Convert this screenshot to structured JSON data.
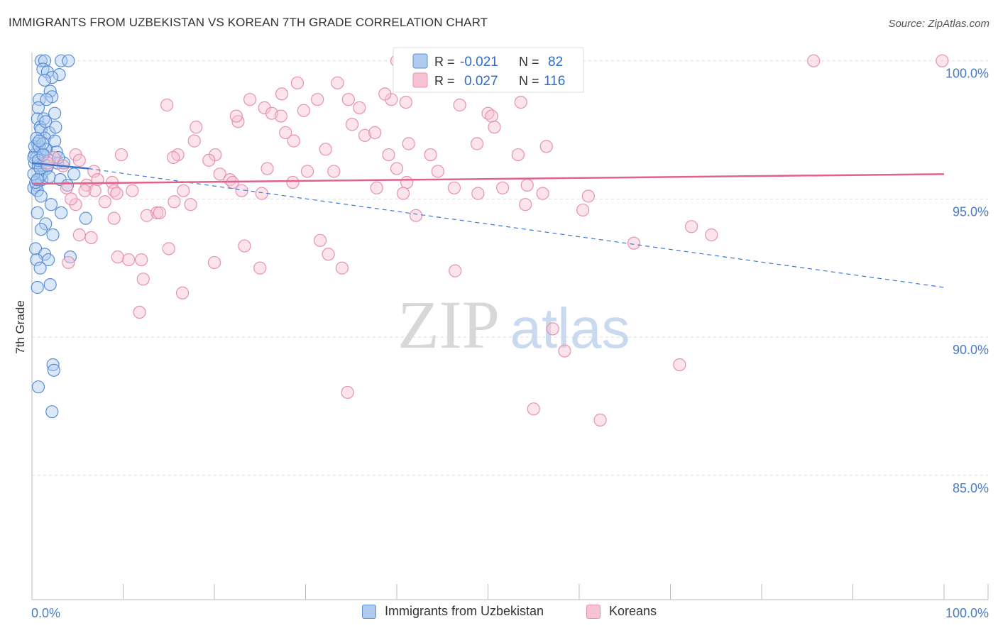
{
  "header": {
    "title": "IMMIGRANTS FROM UZBEKISTAN VS KOREAN 7TH GRADE CORRELATION CHART",
    "source": "Source: ZipAtlas.com"
  },
  "watermark": {
    "zip": "ZIP",
    "atlas": "atlas"
  },
  "legend_box": {
    "rows": [
      {
        "r_label": "R =",
        "r_value": "-0.021",
        "n_label": "N =",
        "n_value": "82",
        "color": "#7aaae8"
      },
      {
        "r_label": "R =",
        "r_value": "0.027",
        "n_label": "N =",
        "n_value": "116",
        "color": "#f29bb8"
      }
    ]
  },
  "colors": {
    "uzbek_fill": "#aecbef",
    "uzbek_stroke": "#5b8fd6",
    "uzbek_line": "#3a78d0",
    "korean_fill": "#f7c3d4",
    "korean_stroke": "#e890b0",
    "korean_line": "#e0628c",
    "grid": "#dddddd",
    "tick_label": "#4a7bc8",
    "value_text": "#2f6bc9"
  },
  "chart_data": {
    "type": "scatter",
    "title": "IMMIGRANTS FROM UZBEKISTAN VS KOREAN 7TH GRADE CORRELATION CHART",
    "xlabel": "",
    "ylabel": "7th Grade",
    "xlim": [
      0,
      100
    ],
    "ylim": [
      80.5,
      100.3
    ],
    "x_tick_labels": [
      "0.0%",
      "100.0%"
    ],
    "y_ticks": [
      85,
      90,
      95,
      100
    ],
    "y_tick_labels": [
      "85.0%",
      "90.0%",
      "95.0%",
      "100.0%"
    ],
    "grid": true,
    "legend_position": "bottom",
    "series": [
      {
        "name": "Immigrants from Uzbekistan",
        "r": -0.021,
        "n": 82,
        "trend": {
          "x": [
            0,
            6.2
          ],
          "y": [
            96.3,
            96.1
          ],
          "dashed_x": [
            6.2,
            100
          ],
          "dashed_y": [
            96.1,
            91.8
          ]
        },
        "points": [
          [
            1.0,
            100
          ],
          [
            1.4,
            100
          ],
          [
            3.2,
            100
          ],
          [
            4.0,
            100
          ],
          [
            1.2,
            99.7
          ],
          [
            1.7,
            99.6
          ],
          [
            3.0,
            99.5
          ],
          [
            2.2,
            99.4
          ],
          [
            1.4,
            99.3
          ],
          [
            2.0,
            98.9
          ],
          [
            2.2,
            98.7
          ],
          [
            0.8,
            98.6
          ],
          [
            1.6,
            98.6
          ],
          [
            0.7,
            98.3
          ],
          [
            2.5,
            98.1
          ],
          [
            0.6,
            97.9
          ],
          [
            1.3,
            97.9
          ],
          [
            0.9,
            97.6
          ],
          [
            1.0,
            97.5
          ],
          [
            1.9,
            97.4
          ],
          [
            1.4,
            97.2
          ],
          [
            2.5,
            97.1
          ],
          [
            0.6,
            97.0
          ],
          [
            1.6,
            96.8
          ],
          [
            0.9,
            96.7
          ],
          [
            2.7,
            96.7
          ],
          [
            0.3,
            96.6
          ],
          [
            1.3,
            96.6
          ],
          [
            0.5,
            96.5
          ],
          [
            0.3,
            96.3
          ],
          [
            2.8,
            96.3
          ],
          [
            3.5,
            96.3
          ],
          [
            0.7,
            96.2
          ],
          [
            1.6,
            96.1
          ],
          [
            4.6,
            95.9
          ],
          [
            0.9,
            95.8
          ],
          [
            1.1,
            95.7
          ],
          [
            3.1,
            95.7
          ],
          [
            0.5,
            95.5
          ],
          [
            3.9,
            95.5
          ],
          [
            0.2,
            95.4
          ],
          [
            0.6,
            95.3
          ],
          [
            1.0,
            95.1
          ],
          [
            2.1,
            94.8
          ],
          [
            0.6,
            94.5
          ],
          [
            3.2,
            94.5
          ],
          [
            5.9,
            94.3
          ],
          [
            1.5,
            94.1
          ],
          [
            1.0,
            93.9
          ],
          [
            2.3,
            93.7
          ],
          [
            0.4,
            93.2
          ],
          [
            1.4,
            93.0
          ],
          [
            4.2,
            92.9
          ],
          [
            0.5,
            92.8
          ],
          [
            1.8,
            92.8
          ],
          [
            0.9,
            92.5
          ],
          [
            2.0,
            91.9
          ],
          [
            0.6,
            91.8
          ],
          [
            2.3,
            89.0
          ],
          [
            2.4,
            88.8
          ],
          [
            0.7,
            88.2
          ],
          [
            2.2,
            87.3
          ],
          [
            0.3,
            96.9
          ],
          [
            0.8,
            96.9
          ],
          [
            1.5,
            97.8
          ],
          [
            2.6,
            97.6
          ],
          [
            0.5,
            97.2
          ],
          [
            0.2,
            96.5
          ],
          [
            1.9,
            96.4
          ],
          [
            1.1,
            95.9
          ],
          [
            0.4,
            95.6
          ],
          [
            0.2,
            95.9
          ],
          [
            0.9,
            96.1
          ],
          [
            1.5,
            96.8
          ],
          [
            1.2,
            97.0
          ],
          [
            0.7,
            96.4
          ],
          [
            1.7,
            96.2
          ],
          [
            2.9,
            96.5
          ],
          [
            0.6,
            95.7
          ],
          [
            1.2,
            96.6
          ],
          [
            0.8,
            97.1
          ],
          [
            1.9,
            95.8
          ]
        ]
      },
      {
        "name": "Koreans",
        "r": 0.027,
        "n": 116,
        "trend": {
          "x": [
            0,
            100
          ],
          "y": [
            95.55,
            95.9
          ]
        },
        "points": [
          [
            40.0,
            100
          ],
          [
            85.7,
            100
          ],
          [
            99.8,
            100
          ],
          [
            29.1,
            99.2
          ],
          [
            33.5,
            99.2
          ],
          [
            27.4,
            98.8
          ],
          [
            34.7,
            98.6
          ],
          [
            31.3,
            98.6
          ],
          [
            23.9,
            98.6
          ],
          [
            39.4,
            98.6
          ],
          [
            41.0,
            98.5
          ],
          [
            35.9,
            98.3
          ],
          [
            46.9,
            98.4
          ],
          [
            25.5,
            98.3
          ],
          [
            14.8,
            98.4
          ],
          [
            26.3,
            98.1
          ],
          [
            27.3,
            98.0
          ],
          [
            50.0,
            98.1
          ],
          [
            50.4,
            98.0
          ],
          [
            22.6,
            97.8
          ],
          [
            35.1,
            97.7
          ],
          [
            18.0,
            97.6
          ],
          [
            27.8,
            97.4
          ],
          [
            36.5,
            97.3
          ],
          [
            37.6,
            97.4
          ],
          [
            28.7,
            97.1
          ],
          [
            17.8,
            97.1
          ],
          [
            41.3,
            97.0
          ],
          [
            48.8,
            97.0
          ],
          [
            56.4,
            96.9
          ],
          [
            32.2,
            96.8
          ],
          [
            20.1,
            96.6
          ],
          [
            16.0,
            96.6
          ],
          [
            39.1,
            96.6
          ],
          [
            43.7,
            96.6
          ],
          [
            53.3,
            96.6
          ],
          [
            9.8,
            96.6
          ],
          [
            15.5,
            96.5
          ],
          [
            19.4,
            96.4
          ],
          [
            25.8,
            96.1
          ],
          [
            40.0,
            96.1
          ],
          [
            44.5,
            96.0
          ],
          [
            30.2,
            96.0
          ],
          [
            33.1,
            96.0
          ],
          [
            20.6,
            95.9
          ],
          [
            21.7,
            95.7
          ],
          [
            22.0,
            95.6
          ],
          [
            28.6,
            95.6
          ],
          [
            41.1,
            95.6
          ],
          [
            8.8,
            95.6
          ],
          [
            54.3,
            95.5
          ],
          [
            6.0,
            95.5
          ],
          [
            37.8,
            95.4
          ],
          [
            46.3,
            95.4
          ],
          [
            51.6,
            95.4
          ],
          [
            5.8,
            95.3
          ],
          [
            6.9,
            95.3
          ],
          [
            9.0,
            95.3
          ],
          [
            11.0,
            95.3
          ],
          [
            16.6,
            95.3
          ],
          [
            23.0,
            95.3
          ],
          [
            25.2,
            95.2
          ],
          [
            40.7,
            95.2
          ],
          [
            48.9,
            95.2
          ],
          [
            56.0,
            95.2
          ],
          [
            61.0,
            95.1
          ],
          [
            8.0,
            94.9
          ],
          [
            15.6,
            94.9
          ],
          [
            17.4,
            94.8
          ],
          [
            4.8,
            94.8
          ],
          [
            54.1,
            94.8
          ],
          [
            60.4,
            94.6
          ],
          [
            13.7,
            94.5
          ],
          [
            9.0,
            94.3
          ],
          [
            12.6,
            94.4
          ],
          [
            14.0,
            94.5
          ],
          [
            42.1,
            94.4
          ],
          [
            72.3,
            94.0
          ],
          [
            74.5,
            93.7
          ],
          [
            5.2,
            93.7
          ],
          [
            6.5,
            93.6
          ],
          [
            66.0,
            93.4
          ],
          [
            31.6,
            93.5
          ],
          [
            15.0,
            93.2
          ],
          [
            23.3,
            93.3
          ],
          [
            32.5,
            93.0
          ],
          [
            9.4,
            92.9
          ],
          [
            10.6,
            92.8
          ],
          [
            12.0,
            92.8
          ],
          [
            4.0,
            92.7
          ],
          [
            20.0,
            92.7
          ],
          [
            25.0,
            92.5
          ],
          [
            34.0,
            92.5
          ],
          [
            46.4,
            92.4
          ],
          [
            12.2,
            92.1
          ],
          [
            16.5,
            91.6
          ],
          [
            11.8,
            90.9
          ],
          [
            57.1,
            90.3
          ],
          [
            58.4,
            89.5
          ],
          [
            71.0,
            89.0
          ],
          [
            34.6,
            88.0
          ],
          [
            55.0,
            87.4
          ],
          [
            62.3,
            87.0
          ],
          [
            4.8,
            96.6
          ],
          [
            5.2,
            96.4
          ],
          [
            3.4,
            96.2
          ],
          [
            2.4,
            96.5
          ],
          [
            1.7,
            96.3
          ],
          [
            6.8,
            96.0
          ],
          [
            3.8,
            95.4
          ],
          [
            4.3,
            95.0
          ],
          [
            7.2,
            95.7
          ],
          [
            9.3,
            95.2
          ],
          [
            29.8,
            98.2
          ],
          [
            38.7,
            98.8
          ],
          [
            53.6,
            98.5
          ],
          [
            50.7,
            97.6
          ],
          [
            22.4,
            98.0
          ]
        ]
      }
    ]
  },
  "bottom_legend": {
    "items": [
      {
        "label": "Immigrants from Uzbekistan"
      },
      {
        "label": "Koreans"
      }
    ]
  }
}
